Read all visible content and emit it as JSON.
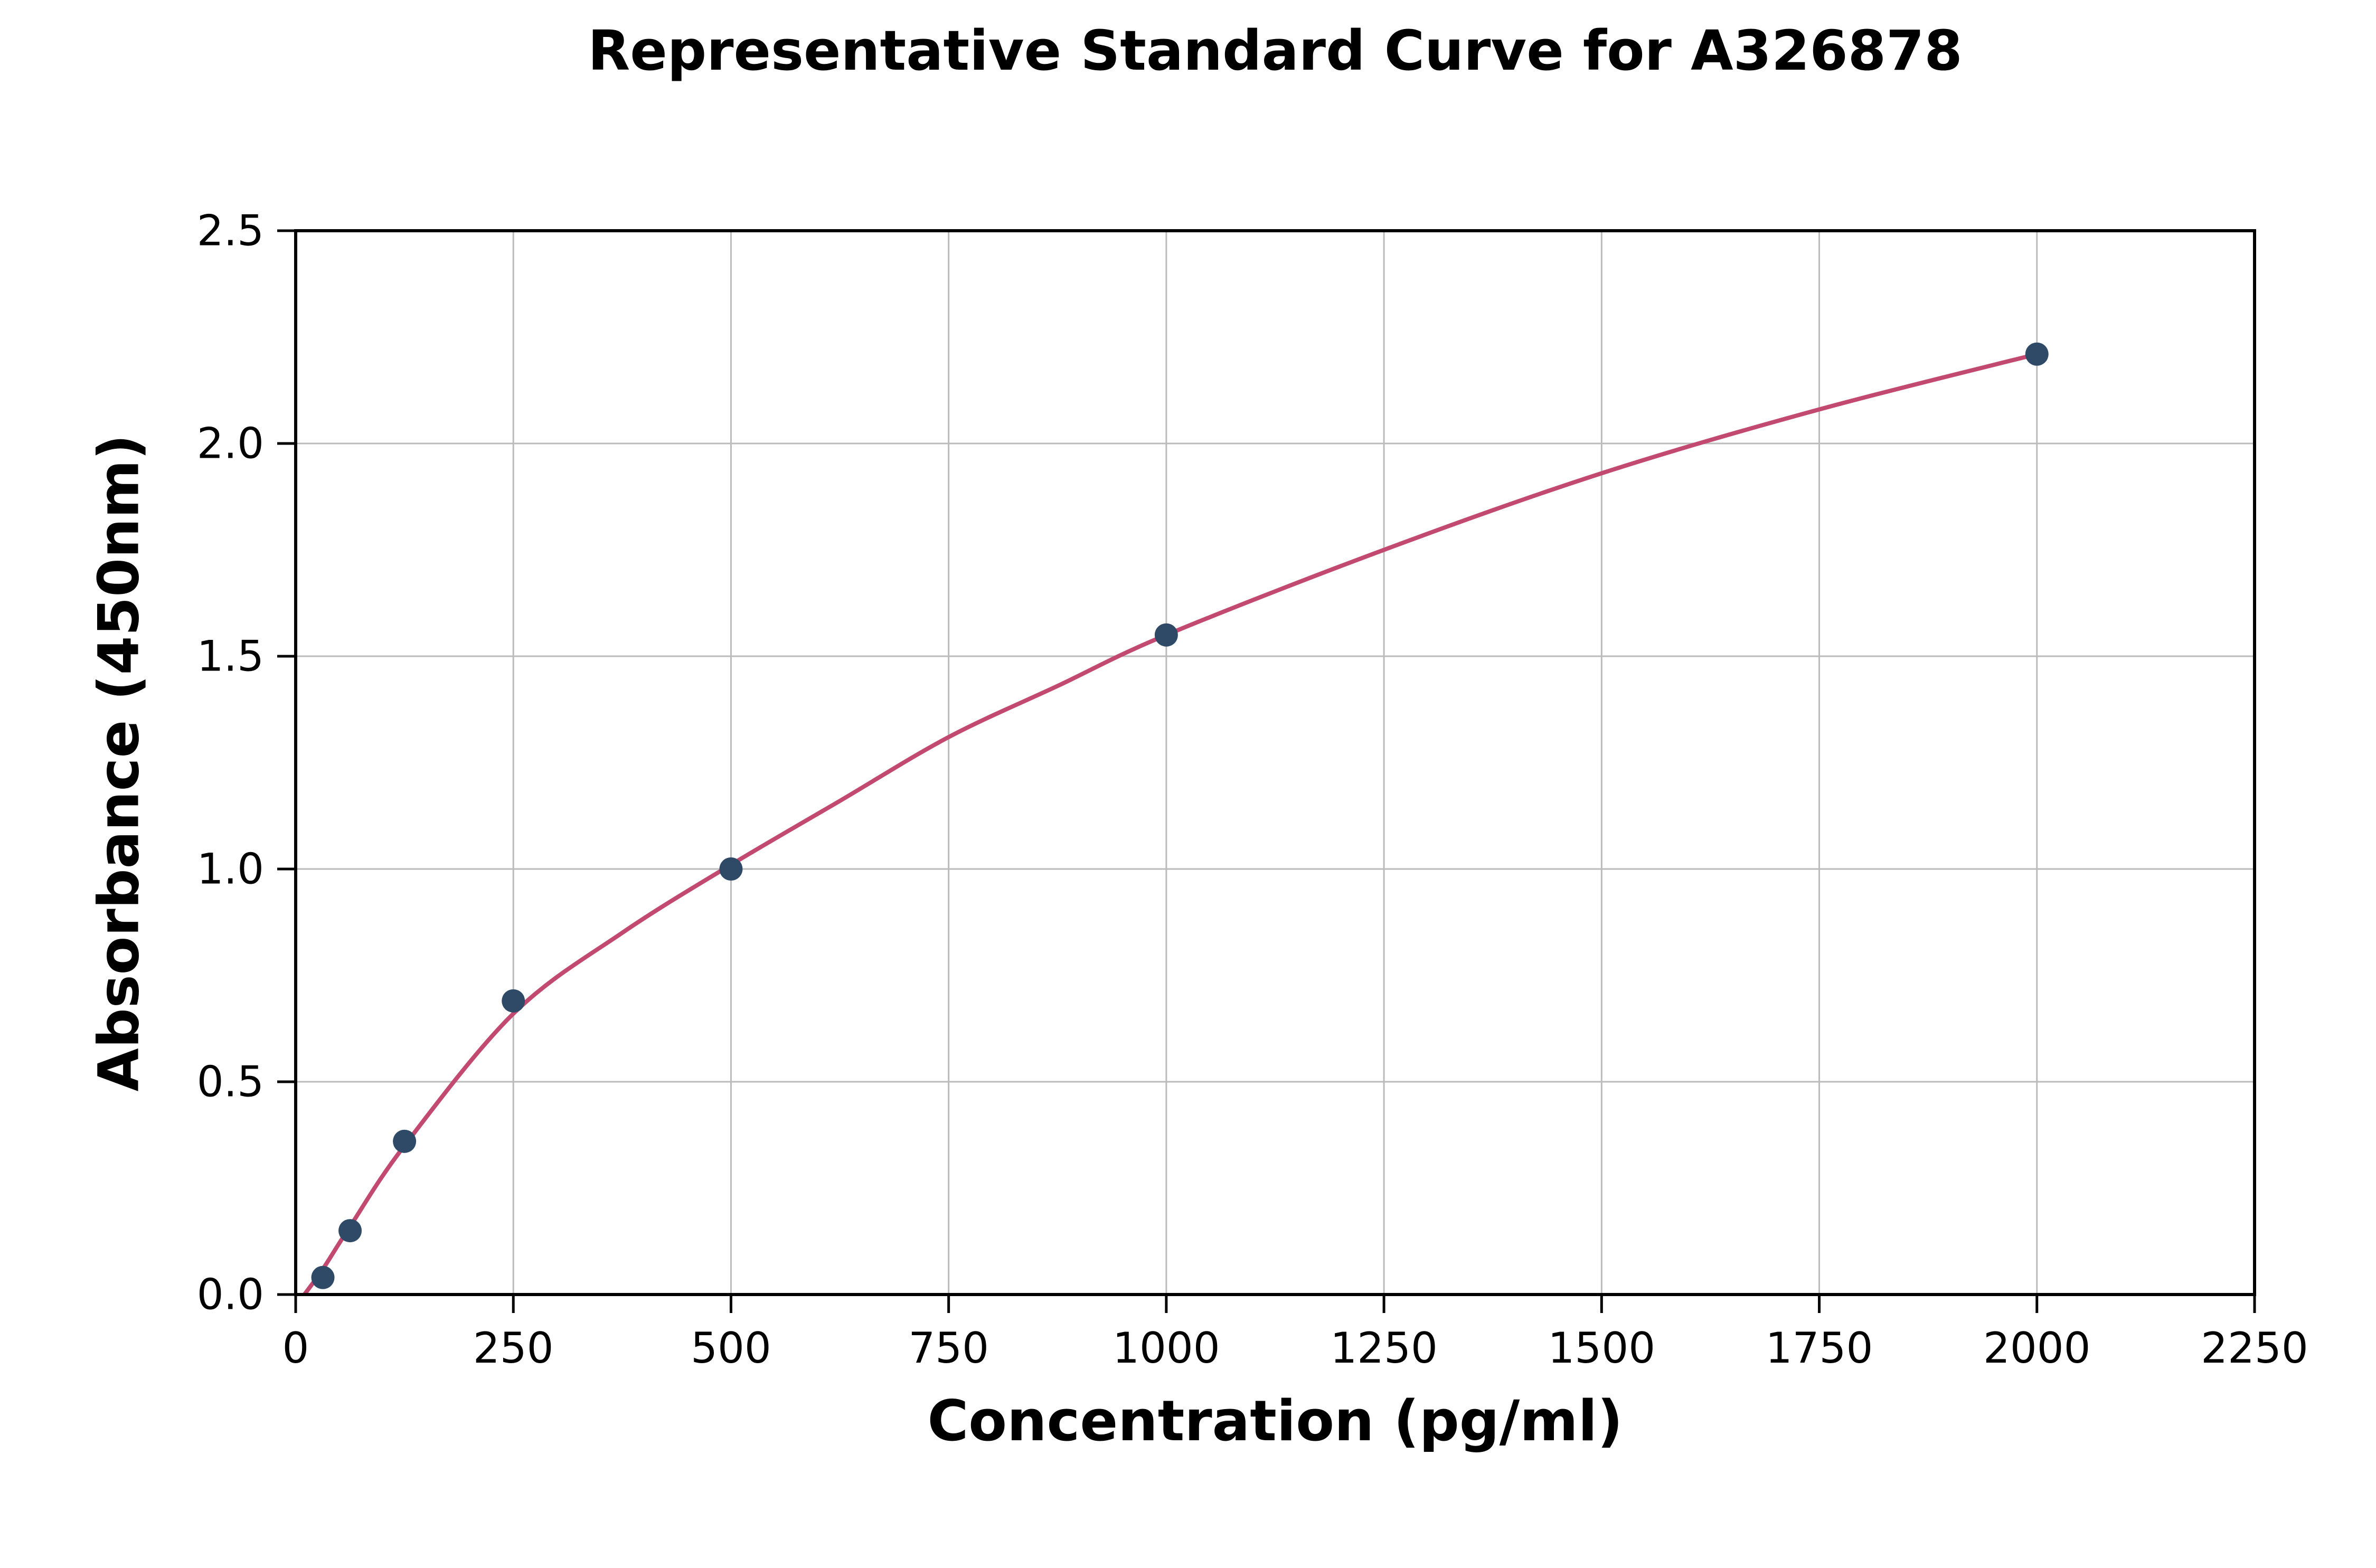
{
  "figure": {
    "background": "#ffffff"
  },
  "chart_data": {
    "type": "scatter",
    "title": "Representative Standard Curve for A326878",
    "xlabel": "Concentration (pg/ml)",
    "ylabel": "Absorbance (450nm)",
    "xlim": [
      0,
      2250
    ],
    "ylim": [
      0,
      2.5
    ],
    "xticks": [
      0,
      250,
      500,
      750,
      1000,
      1250,
      1500,
      1750,
      2000,
      2250
    ],
    "xtick_labels": [
      "0",
      "250",
      "500",
      "750",
      "1000",
      "1250",
      "1500",
      "1750",
      "2000",
      "2250"
    ],
    "yticks": [
      0,
      0.5,
      1.0,
      1.5,
      2.0,
      2.5
    ],
    "ytick_labels": [
      "0.0",
      "0.5",
      "1.0",
      "1.5",
      "2.0",
      "2.5"
    ],
    "grid": true,
    "legend_position": "none",
    "series": [
      {
        "name": "standard-points",
        "type": "scatter",
        "color": "#2e4a66",
        "points": [
          [
            31.25,
            0.04
          ],
          [
            62.5,
            0.15
          ],
          [
            125,
            0.36
          ],
          [
            250,
            0.69
          ],
          [
            500,
            1.0
          ],
          [
            1000,
            1.55
          ],
          [
            2000,
            2.21
          ]
        ]
      },
      {
        "name": "fitted-curve",
        "type": "line",
        "color": "#c2496f",
        "points": [
          [
            10,
            0.0
          ],
          [
            31.25,
            0.06
          ],
          [
            62.5,
            0.16
          ],
          [
            125,
            0.35
          ],
          [
            250,
            0.66
          ],
          [
            375,
            0.85
          ],
          [
            500,
            1.01
          ],
          [
            625,
            1.16
          ],
          [
            750,
            1.31
          ],
          [
            875,
            1.43
          ],
          [
            1000,
            1.55
          ],
          [
            1250,
            1.75
          ],
          [
            1500,
            1.93
          ],
          [
            1750,
            2.08
          ],
          [
            2000,
            2.21
          ]
        ]
      }
    ],
    "colors": {
      "marker": "#2e4a66",
      "curve": "#c2496f",
      "grid": "#bbbbbb",
      "spine": "#000000"
    }
  }
}
